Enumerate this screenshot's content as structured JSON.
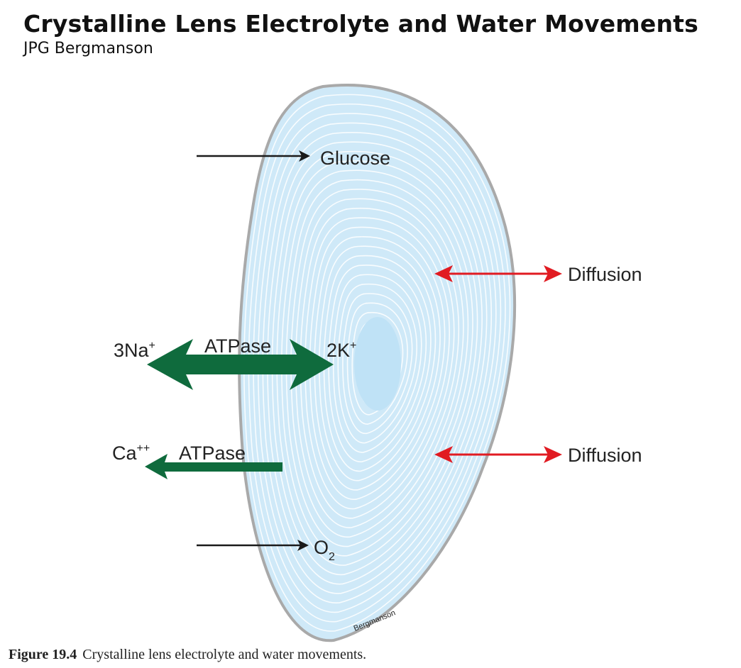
{
  "header": {
    "title": "Crystalline Lens Electrolyte and Water Movements",
    "author": "JPG Bergmanson"
  },
  "diagram": {
    "labels": {
      "glucose": "Glucose",
      "oxygen_base": "O",
      "oxygen_sub": "2",
      "diffusion_upper": "Diffusion",
      "diffusion_lower": "Diffusion",
      "sodium_base": "3Na",
      "sodium_sup": "+",
      "potassium_base": "2K",
      "potassium_sup": "+",
      "atpase_pump": "ATPase",
      "calcium_base": "Ca",
      "calcium_sup": "++",
      "atpase_calcium": "ATPase",
      "watermark": "Bergmanson"
    },
    "colors": {
      "lens_fill": "#cfe9f8",
      "lens_lines": "#ffffff",
      "lens_border": "#a9a9a9",
      "nucleus": "#bfe2f6",
      "atpase_arrow": "#0f6b3d",
      "diffusion_arrow": "#e11b22",
      "input_arrow": "#1a1a1a"
    }
  },
  "caption": {
    "figure": "Figure 19.4",
    "text": "Crystalline lens electrolyte and water movements."
  }
}
